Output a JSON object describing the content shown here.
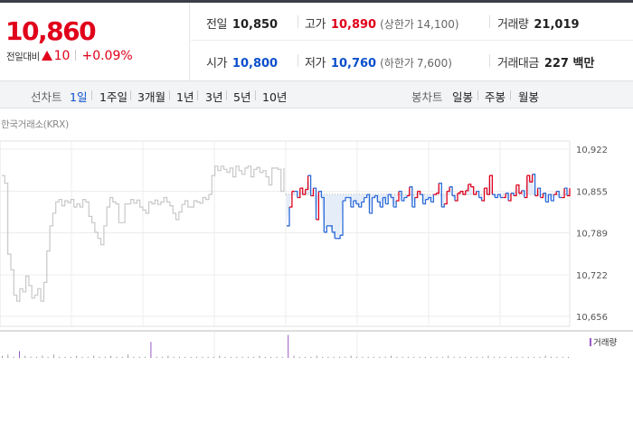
{
  "summary": {
    "current_price": "10,860",
    "change_label": "전일대비",
    "change_value": "10",
    "change_rate": "+0.09%",
    "prev_close_label": "전일",
    "prev_close": "10,850",
    "high_label": "고가",
    "high": "10,890",
    "upper_limit_label": "(상한가",
    "upper_limit": "14,100)",
    "volume_label": "거래량",
    "volume": "21,019",
    "open_label": "시가",
    "open": "10,800",
    "low_label": "저가",
    "low": "10,760",
    "lower_limit_label": "(하한가",
    "lower_limit": "7,600)",
    "amount_label": "거래대금",
    "amount": "227 백만"
  },
  "tabs": {
    "line_chart_title": "선차트",
    "period_tabs": [
      "1일",
      "1주일",
      "3개월",
      "1년",
      "3년",
      "5년",
      "10년"
    ],
    "active_period": "1일",
    "candle_chart_title": "봉차트",
    "candle_tabs": [
      "일봉",
      "주봉",
      "월봉"
    ]
  },
  "chart": {
    "exchange_label": "한국거래소(KRX)",
    "volume_legend": "거래량",
    "colors": {
      "up": "#e0001a",
      "down": "#2a6ad8",
      "previous": "#c8c8c8",
      "volume": "#9b59c6"
    }
  },
  "chart_data": {
    "type": "line",
    "title": "",
    "ylim": [
      10640,
      10935
    ],
    "y_ticks": [
      "10,922",
      "10,855",
      "10,789",
      "10,722",
      "10,656"
    ],
    "y_tick_values": [
      10922,
      10855,
      10789,
      10722,
      10656
    ],
    "baseline": 10850,
    "series": [
      {
        "name": "previous",
        "values": [
          10880,
          10868,
          10755,
          10730,
          10690,
          10680,
          10700,
          10695,
          10720,
          10705,
          10685,
          10690,
          10700,
          10680,
          10710,
          10760,
          10800,
          10820,
          10838,
          10842,
          10832,
          10840,
          10837,
          10842,
          10830,
          10835,
          10830,
          10842,
          10838,
          10815,
          10805,
          10790,
          10780,
          10770,
          10800,
          10830,
          10845,
          10838,
          10835,
          10805,
          10805,
          10835,
          10835,
          10842,
          10836,
          10841,
          10830,
          10825,
          10820,
          10838,
          10835,
          10841,
          10834,
          10838,
          10845,
          10838,
          10832,
          10820,
          10810,
          10822,
          10834,
          10840,
          10830,
          10830,
          10840,
          10838,
          10836,
          10845,
          10842,
          10850,
          10880,
          10895,
          10888,
          10895,
          10890,
          10885,
          10892,
          10878,
          10895,
          10888,
          10882,
          10892,
          10895,
          10878,
          10890,
          10893,
          10885,
          10888,
          10878,
          10865,
          10892,
          10892,
          10890,
          10855,
          10892
        ]
      },
      {
        "name": "today",
        "values": [
          10800,
          10830,
          10855,
          10855,
          10845,
          10860,
          10850,
          10858,
          10880,
          10848,
          10860,
          10810,
          10855,
          10845,
          10790,
          10800,
          10800,
          10790,
          10780,
          10780,
          10785,
          10840,
          10845,
          10845,
          10830,
          10840,
          10835,
          10830,
          10838,
          10845,
          10850,
          10820,
          10845,
          10848,
          10838,
          10830,
          10845,
          10835,
          10850,
          10845,
          10830,
          10840,
          10855,
          10840,
          10845,
          10848,
          10862,
          10830,
          10845,
          10855,
          10850,
          10835,
          10842,
          10845,
          10838,
          10850,
          10852,
          10868,
          10830,
          10835,
          10855,
          10862,
          10848,
          10840,
          10852,
          10855,
          10850,
          10856,
          10866,
          10862,
          10850,
          10855,
          10845,
          10840,
          10860,
          10850,
          10880,
          10850,
          10845,
          10850,
          10845,
          10845,
          10852,
          10840,
          10852,
          10848,
          10865,
          10852,
          10856,
          10845,
          10880,
          10870,
          10882,
          10848,
          10860,
          10845,
          10852,
          10838,
          10850,
          10840,
          10850,
          10855,
          10845,
          10845,
          10860,
          10848,
          10860
        ]
      }
    ],
    "volume_values": [
      2,
      3,
      1,
      6,
      2,
      1,
      1,
      2,
      1,
      3,
      1,
      1,
      1,
      2,
      1,
      1,
      2,
      1,
      1,
      2,
      1,
      1,
      3,
      1,
      1,
      1,
      14,
      1,
      1,
      2,
      1,
      1,
      1,
      1,
      1,
      1,
      1,
      1,
      2,
      1,
      1,
      1,
      1,
      1,
      1,
      2,
      1,
      1,
      1,
      1,
      20,
      2,
      1,
      1,
      1,
      2,
      1,
      1,
      1,
      1,
      1,
      2,
      1,
      1,
      1,
      1,
      1,
      1,
      2,
      1,
      1,
      1,
      1,
      1,
      1,
      1,
      1,
      1,
      2,
      1,
      1,
      1,
      1,
      1,
      1,
      2,
      1,
      1,
      1,
      1,
      1,
      1,
      1,
      1,
      1,
      2,
      1,
      1,
      1,
      1
    ]
  }
}
